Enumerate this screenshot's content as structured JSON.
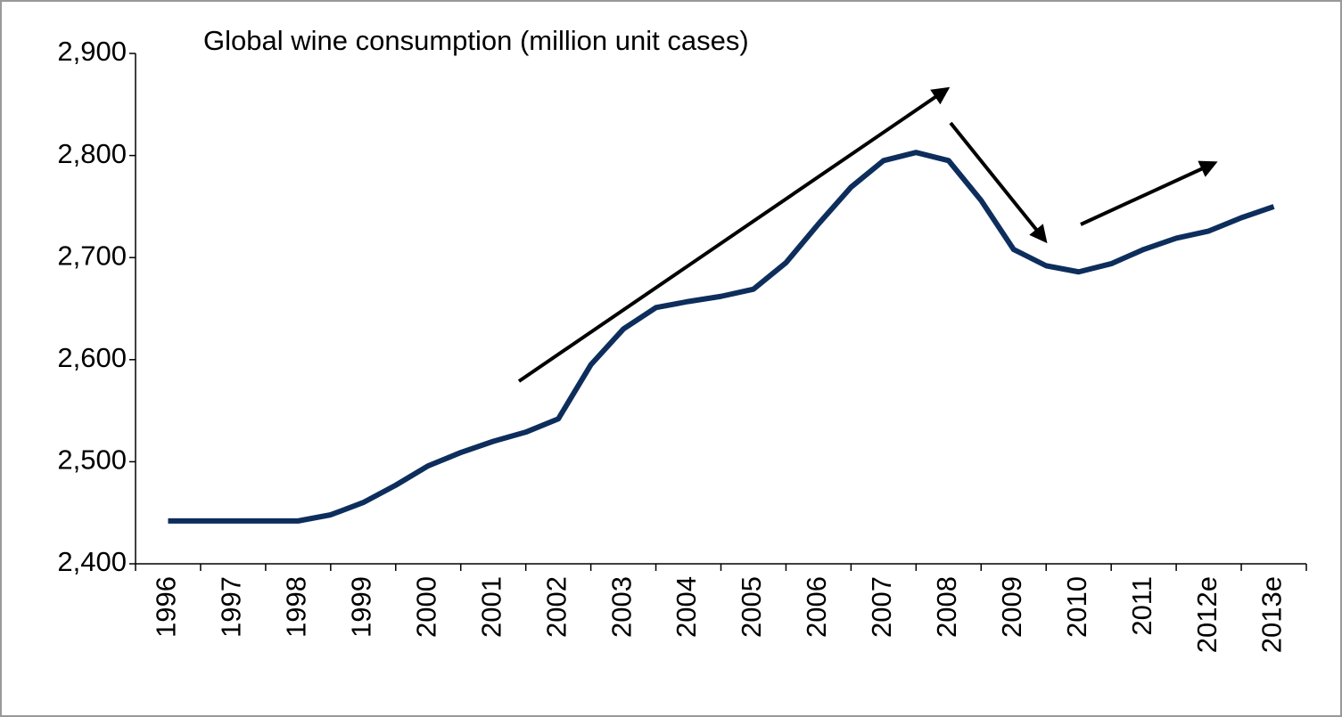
{
  "chart_data": {
    "type": "line",
    "title": "Global wine consumption (million unit cases)",
    "categories": [
      "1996",
      null,
      "1997",
      null,
      "1998",
      null,
      "1999",
      null,
      "2000",
      null,
      "2001",
      null,
      "2002",
      null,
      "2003",
      null,
      "2004",
      null,
      "2005",
      null,
      "2006",
      null,
      "2007",
      null,
      "2008",
      null,
      "2009",
      null,
      "2010",
      null,
      "2011",
      null,
      "2012e",
      null,
      "2013e"
    ],
    "series": [
      {
        "name": "Global wine consumption",
        "color": "#0d2e5c",
        "values": [
          2442,
          2442,
          2442,
          2442,
          2442,
          2448,
          2460,
          2477,
          2496,
          2509,
          2520,
          2529,
          2542,
          2595,
          2630,
          2651,
          2657,
          2662,
          2669,
          2695,
          2733,
          2769,
          2795,
          2803,
          2795,
          2756,
          2708,
          2692,
          2686,
          2694,
          2708,
          2719,
          2726,
          2739,
          2750
        ]
      }
    ],
    "ylim": [
      2400,
      2900
    ],
    "yticks": [
      {
        "value": 2400,
        "label": "2,400"
      },
      {
        "value": 2500,
        "label": "2,500"
      },
      {
        "value": 2600,
        "label": "2,600"
      },
      {
        "value": 2700,
        "label": "2,700"
      },
      {
        "value": 2800,
        "label": "2,800"
      },
      {
        "value": 2900,
        "label": "2,900"
      }
    ],
    "grid": false
  }
}
